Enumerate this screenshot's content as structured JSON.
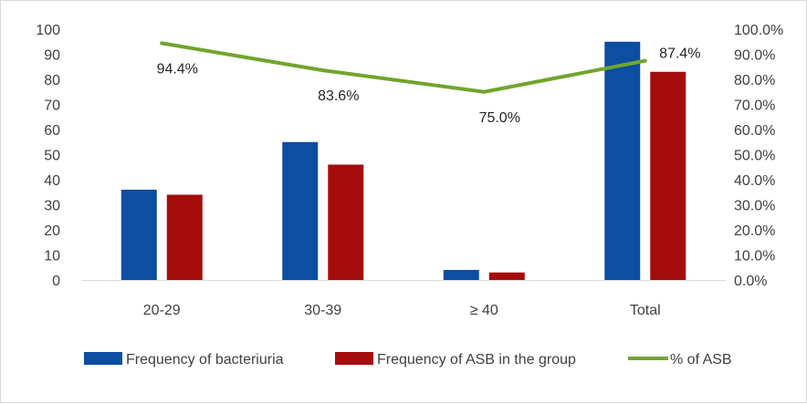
{
  "chart_data": {
    "type": "bar",
    "categories": [
      "20-29",
      "30-39",
      "≥  40",
      "Total"
    ],
    "series": [
      {
        "name": "Frequency of bacteriuria",
        "type": "bar",
        "axis": "left",
        "color": "#0b4ea2",
        "values": [
          36,
          55,
          4,
          95
        ]
      },
      {
        "name": "Frequency of ASB in the group",
        "type": "bar",
        "axis": "left",
        "color": "#a50d0d",
        "values": [
          34,
          46,
          3,
          83
        ]
      },
      {
        "name": "% of ASB",
        "type": "line",
        "axis": "right",
        "color": "#70a52d",
        "values": [
          94.4,
          83.6,
          75.0,
          87.4
        ],
        "labels": [
          "94.4%",
          "83.6%",
          "75.0%",
          "87.4%"
        ]
      }
    ],
    "left_axis": {
      "min": 0,
      "max": 100,
      "step": 10,
      "ticks": [
        "0",
        "10",
        "20",
        "30",
        "40",
        "50",
        "60",
        "70",
        "80",
        "90",
        "100"
      ]
    },
    "right_axis": {
      "min": 0,
      "max": 100,
      "step": 10,
      "ticks": [
        "0.0%",
        "10.0%",
        "20.0%",
        "30.0%",
        "40.0%",
        "50.0%",
        "60.0%",
        "70.0%",
        "80.0%",
        "90.0%",
        "100.0%"
      ]
    },
    "grid": false,
    "legend_position": "bottom"
  }
}
